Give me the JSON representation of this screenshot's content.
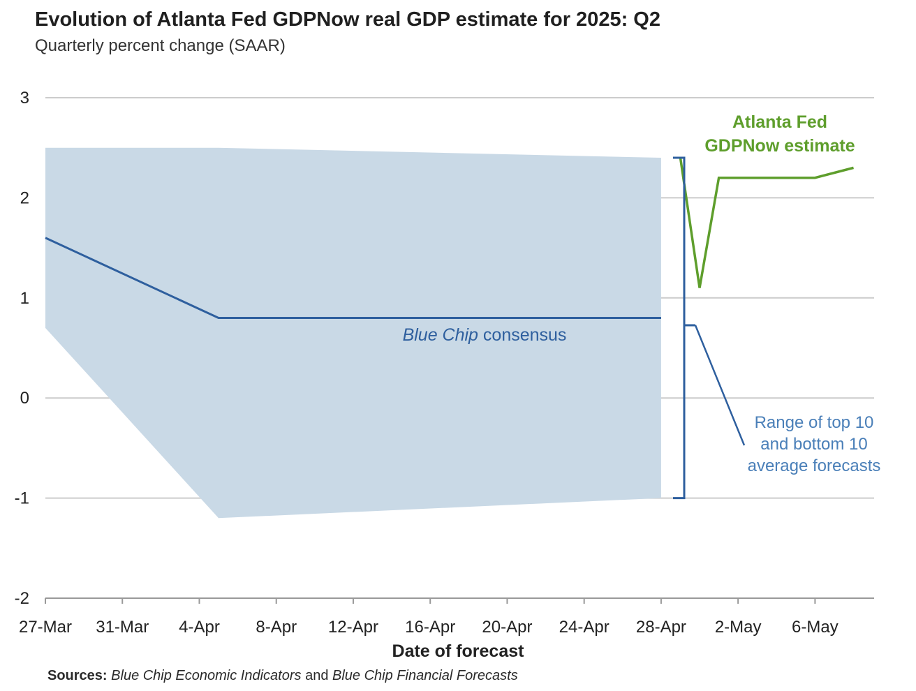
{
  "header": {
    "title": "Evolution of Atlanta Fed GDPNow real GDP estimate for 2025: Q2",
    "subtitle": "Quarterly percent change (SAAR)"
  },
  "footer": {
    "sources_label": "Sources:",
    "source_1": "Blue Chip Economic Indicators",
    "joiner": "and",
    "source_2": "Blue Chip Financial Forecasts"
  },
  "chart_data": {
    "type": "line",
    "title": "Evolution of Atlanta Fed GDPNow real GDP estimate for 2025: Q2",
    "subtitle": "Quarterly percent change (SAAR)",
    "xlabel": "Date of forecast",
    "ylabel": "",
    "ylim": [
      -2,
      3
    ],
    "yticks": [
      "3",
      "2",
      "1",
      "0",
      "-1",
      "-2"
    ],
    "ytick_values": [
      3,
      2,
      1,
      0,
      -1,
      -2
    ],
    "xlim": [
      "2025-03-27",
      "2025-05-10"
    ],
    "xticks": [
      {
        "date": "2025-03-27",
        "label": "27-Mar"
      },
      {
        "date": "2025-03-31",
        "label": "31-Mar"
      },
      {
        "date": "2025-04-04",
        "label": "4-Apr"
      },
      {
        "date": "2025-04-08",
        "label": "8-Apr"
      },
      {
        "date": "2025-04-12",
        "label": "12-Apr"
      },
      {
        "date": "2025-04-16",
        "label": "16-Apr"
      },
      {
        "date": "2025-04-20",
        "label": "20-Apr"
      },
      {
        "date": "2025-04-24",
        "label": "24-Apr"
      },
      {
        "date": "2025-04-28",
        "label": "28-Apr"
      },
      {
        "date": "2025-05-02",
        "label": "2-May"
      },
      {
        "date": "2025-05-06",
        "label": "6-May"
      }
    ],
    "grid": true,
    "band": {
      "name": "Range of top 10 and bottom 10 average forecasts",
      "label_lines": [
        "Range of top 10",
        "and bottom 10",
        "average forecasts"
      ],
      "color": "#c9d9e6",
      "points": [
        {
          "x": "2025-03-27",
          "low": 0.7,
          "high": 2.5
        },
        {
          "x": "2025-04-05",
          "low": -1.2,
          "high": 2.5
        },
        {
          "x": "2025-04-28",
          "low": -1.0,
          "high": 2.4
        }
      ]
    },
    "series": [
      {
        "name": "Blue Chip consensus",
        "label_italic": "Blue Chip",
        "label_rest": " consensus",
        "color": "#2e5f9e",
        "points": [
          {
            "x": "2025-03-27",
            "y": 1.6
          },
          {
            "x": "2025-04-05",
            "y": 0.8
          },
          {
            "x": "2025-04-28",
            "y": 0.8
          }
        ]
      },
      {
        "name": "Atlanta Fed GDPNow estimate",
        "label_lines": [
          "Atlanta Fed",
          "GDPNow estimate"
        ],
        "color": "#5e9e2c",
        "points": [
          {
            "x": "2025-04-29",
            "y": 2.4
          },
          {
            "x": "2025-04-30",
            "y": 1.1
          },
          {
            "x": "2025-05-01",
            "y": 2.2
          },
          {
            "x": "2025-05-06",
            "y": 2.2
          },
          {
            "x": "2025-05-08",
            "y": 2.3
          }
        ]
      }
    ],
    "colors": {
      "grid": "#cccccc",
      "axis": "#999999",
      "bracket": "#2e5f9e",
      "range_label": "#4a7fb8"
    }
  }
}
